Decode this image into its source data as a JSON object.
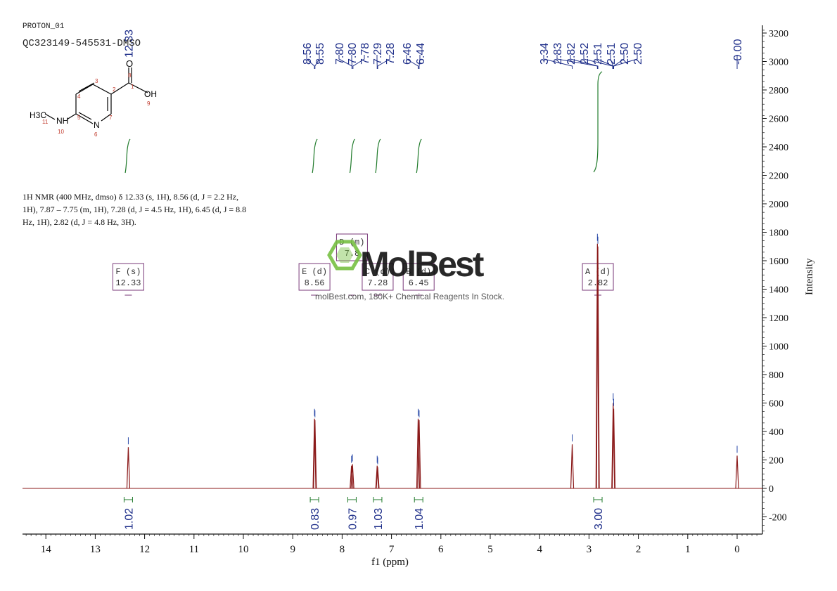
{
  "header": {
    "experiment": "PROTON_01",
    "sample": "QC323149-545531-DMSO"
  },
  "structure": {
    "atoms": [
      "O",
      "OH",
      "NH",
      "N",
      "H3C"
    ],
    "numbers": [
      "1",
      "2",
      "3",
      "4",
      "5",
      "6",
      "7",
      "8",
      "9",
      "10",
      "11"
    ]
  },
  "nmr_text": {
    "line1": "1H NMR (400 MHz, dmso) δ 12.33 (s, 1H), 8.56 (d, J = 2.2 Hz,",
    "line2": "1H), 7.87 – 7.75 (m, 1H), 7.28 (d, J = 4.5 Hz, 1H), 6.45 (d, J = 8.8",
    "line3": "Hz, 1H), 2.82 (d, J = 4.8 Hz, 3H)."
  },
  "watermark": {
    "brand": "MolBest",
    "tagline": "molBest.com, 180K+ Chemical Reagents In Stock."
  },
  "colors": {
    "spectrum": "#8b1a1a",
    "peak_labels": "#1f2f8a",
    "integrals": "#1f7a2a",
    "multiplet_box": "#7a3a7a",
    "watermark_green": "#77c043"
  },
  "chart_data": {
    "type": "line",
    "title": "",
    "xlabel": "f1 (ppm)",
    "ylabel": "Intensity",
    "xlim": [
      14.5,
      -0.5
    ],
    "ylim": [
      -300,
      3300
    ],
    "x_axis_reversed": true,
    "x_ticks": [
      14,
      13,
      12,
      11,
      10,
      9,
      8,
      7,
      6,
      5,
      4,
      3,
      2,
      1,
      0
    ],
    "y_ticks": [
      -200,
      0,
      200,
      400,
      600,
      800,
      1000,
      1200,
      1400,
      1600,
      1800,
      2000,
      2200,
      2400,
      2600,
      2800,
      3000,
      3200
    ],
    "y_axis_side": "right",
    "peaks": [
      {
        "ppm": 12.33,
        "height": 290
      },
      {
        "ppm": 8.56,
        "height": 490
      },
      {
        "ppm": 8.55,
        "height": 480
      },
      {
        "ppm": 7.81,
        "height": 160
      },
      {
        "ppm": 7.79,
        "height": 170
      },
      {
        "ppm": 7.29,
        "height": 160
      },
      {
        "ppm": 7.28,
        "height": 150
      },
      {
        "ppm": 6.46,
        "height": 490
      },
      {
        "ppm": 6.44,
        "height": 480
      },
      {
        "ppm": 3.34,
        "height": 310
      },
      {
        "ppm": 2.83,
        "height": 1720
      },
      {
        "ppm": 2.82,
        "height": 1700
      },
      {
        "ppm": 2.51,
        "height": 600
      },
      {
        "ppm": 2.5,
        "height": 560
      },
      {
        "ppm": 0.0,
        "height": 230
      }
    ],
    "peak_labels": [
      "8.56",
      "8.55",
      "7.80",
      "7.80",
      "7.78",
      "7.29",
      "7.28",
      "6.46",
      "6.44",
      "3.34",
      "2.83",
      "2.82",
      "2.52",
      "2.51",
      "2.51",
      "2.50",
      "2.50",
      "-0.00"
    ],
    "peak_label_ppm": [
      8.56,
      8.55,
      7.8,
      7.8,
      7.78,
      7.29,
      7.28,
      6.46,
      6.44,
      3.34,
      2.83,
      2.82,
      2.52,
      2.51,
      2.51,
      2.5,
      2.5,
      0.0
    ],
    "top_left_label": {
      "text": "12.33",
      "ppm": 12.33
    },
    "integrals": [
      {
        "ppm": 12.33,
        "value": "1.02",
        "curve_ppm": 12.35
      },
      {
        "ppm": 8.56,
        "value": "0.83",
        "curve_ppm": 8.56
      },
      {
        "ppm": 7.8,
        "value": "0.97",
        "curve_ppm": 7.8
      },
      {
        "ppm": 7.28,
        "value": "1.03",
        "curve_ppm": 7.28
      },
      {
        "ppm": 6.45,
        "value": "1.04",
        "curve_ppm": 6.45
      },
      {
        "ppm": 2.82,
        "value": "3.00",
        "curve_ppm": 2.82
      }
    ],
    "multiplets": [
      {
        "label": "F (s)",
        "shift": "12.33",
        "ppm": 12.33
      },
      {
        "label": "E (d)",
        "shift": "8.56",
        "ppm": 8.56
      },
      {
        "label": "D (m)",
        "shift": "7.8",
        "ppm": 7.8
      },
      {
        "label": "C (d)",
        "shift": "7.28",
        "ppm": 7.28
      },
      {
        "label": "B (d)",
        "shift": "6.45",
        "ppm": 6.45
      },
      {
        "label": "A (d)",
        "shift": "2.82",
        "ppm": 2.82
      }
    ]
  }
}
